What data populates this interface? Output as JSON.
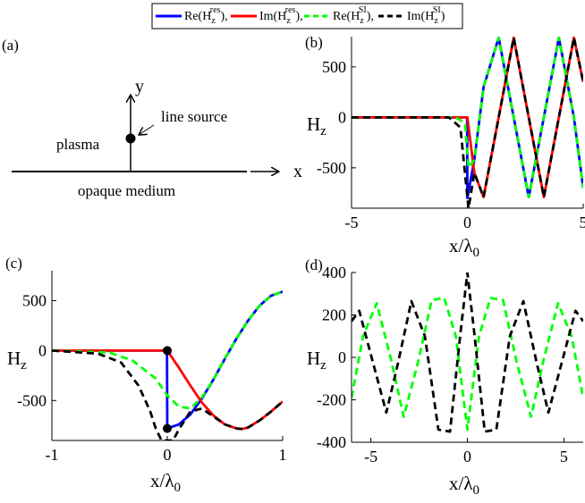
{
  "legend": {
    "entries": [
      {
        "name": "Re(H_z^res)",
        "base": "Re(H",
        "sub": "z",
        "sup": "res",
        "tail": "),",
        "color": "#0000ff",
        "dash": "solid"
      },
      {
        "name": "Im(H_z^res)",
        "base": "Im(H",
        "sub": "z",
        "sup": "res",
        "tail": "),",
        "color": "#ff0000",
        "dash": "solid"
      },
      {
        "name": "Re(H_z^SI)",
        "base": "Re(H",
        "sub": "z",
        "sup": "SI",
        "tail": "),",
        "color": "#00ff00",
        "dash": "dashed"
      },
      {
        "name": "Im(H_z^SI)",
        "base": "Im(H",
        "sub": "z",
        "sup": "SI",
        "tail": ")",
        "color": "#000000",
        "dash": "dashed"
      }
    ]
  },
  "panel_a": {
    "label": "(a)",
    "y_axis": "y",
    "x_axis": "x",
    "source_label": "line source",
    "upper_label": "plasma",
    "lower_label": "opaque medium"
  },
  "colors": {
    "blue": "#0000ff",
    "red": "#ff0000",
    "green": "#00ff00",
    "black": "#000000"
  },
  "chart_data": [
    {
      "panel": "(b)",
      "type": "line",
      "xlabel_main": "x/λ",
      "xlabel_sub": "0",
      "ylabel_main": "H",
      "ylabel_sub": "z",
      "xlim": [
        -5,
        5
      ],
      "ylim": [
        -900,
        800
      ],
      "xticks": [
        "-5",
        "0",
        "5"
      ],
      "xtick_values": [
        -5,
        0,
        5
      ],
      "yticks": [
        "500",
        "0",
        "-500"
      ],
      "ytick_values": [
        500,
        0,
        -500
      ],
      "series": [
        {
          "name": "Re(H_z^res)",
          "color": "#0000ff",
          "dash": "solid",
          "x": [
            -5,
            -0.01,
            0,
            0.3,
            0.7,
            1.35,
            2.0,
            2.65,
            3.3,
            3.95,
            4.6,
            5.0
          ],
          "y": [
            0,
            0,
            -800,
            -420,
            300,
            790,
            0,
            -790,
            0,
            790,
            0,
            -700
          ]
        },
        {
          "name": "Im(H_z^res)",
          "color": "#ff0000",
          "dash": "solid",
          "x": [
            -5,
            0,
            0.3,
            0.7,
            1.35,
            2.0,
            2.65,
            3.3,
            3.95,
            4.6,
            5.0
          ],
          "y": [
            0,
            0,
            -550,
            -790,
            0,
            790,
            0,
            -790,
            0,
            790,
            350
          ]
        },
        {
          "name": "Re(H_z^SI)",
          "color": "#00ff00",
          "dash": "dashed",
          "x": [
            -5,
            -0.5,
            -0.1,
            0.05,
            0.3,
            0.7,
            1.35,
            2.0,
            2.65,
            3.3,
            3.95,
            4.6,
            5.0
          ],
          "y": [
            0,
            0,
            -60,
            -500,
            -420,
            300,
            790,
            0,
            -790,
            0,
            790,
            0,
            -700
          ]
        },
        {
          "name": "Im(H_z^SI)",
          "color": "#000000",
          "dash": "dashed",
          "x": [
            -5,
            -0.8,
            -0.3,
            -0.1,
            0.05,
            0.3,
            0.7,
            1.35,
            2.0,
            2.65,
            3.3,
            3.95,
            4.6,
            5.0
          ],
          "y": [
            0,
            0,
            -100,
            -560,
            -900,
            -550,
            -790,
            0,
            790,
            0,
            -790,
            0,
            790,
            350
          ]
        }
      ]
    },
    {
      "panel": "(c)",
      "type": "line",
      "xlabel_main": "x/λ",
      "xlabel_sub": "0",
      "ylabel_main": "H",
      "ylabel_sub": "z",
      "xlim": [
        -1,
        1
      ],
      "ylim": [
        -900,
        800
      ],
      "xticks": [
        "-1",
        "0",
        "1"
      ],
      "xtick_values": [
        -1,
        0,
        1
      ],
      "yticks": [
        "500",
        "0",
        "-500"
      ],
      "ytick_values": [
        500,
        0,
        -500
      ],
      "markers": [
        {
          "x": 0,
          "y": 0
        },
        {
          "x": 0,
          "y": -780
        }
      ],
      "series": [
        {
          "name": "Re(H_z^res)",
          "color": "#0000ff",
          "dash": "solid",
          "x": [
            -1,
            -0.002,
            0,
            0.1,
            0.2,
            0.3,
            0.4,
            0.5,
            0.6,
            0.7,
            0.8,
            0.9,
            1.0
          ],
          "y": [
            0,
            0,
            -780,
            -740,
            -640,
            -480,
            -290,
            -80,
            120,
            300,
            450,
            550,
            590
          ]
        },
        {
          "name": "Im(H_z^res)",
          "color": "#ff0000",
          "dash": "solid",
          "x": [
            -1,
            0,
            0.1,
            0.2,
            0.3,
            0.4,
            0.5,
            0.6,
            0.65,
            0.7,
            0.8,
            0.9,
            1.0
          ],
          "y": [
            0,
            0,
            -170,
            -350,
            -520,
            -650,
            -740,
            -780,
            -785,
            -770,
            -700,
            -610,
            -510
          ]
        },
        {
          "name": "Re(H_z^SI)",
          "color": "#00ff00",
          "dash": "dashed",
          "x": [
            -1,
            -0.5,
            -0.3,
            -0.1,
            0,
            0.1,
            0.2,
            0.3,
            0.4,
            0.5,
            0.6,
            0.7,
            0.8,
            0.9,
            1.0
          ],
          "y": [
            0,
            -20,
            -100,
            -280,
            -450,
            -560,
            -580,
            -470,
            -290,
            -80,
            120,
            300,
            450,
            550,
            590
          ]
        },
        {
          "name": "Im(H_z^SI)",
          "color": "#000000",
          "dash": "dashed",
          "x": [
            -1,
            -0.6,
            -0.4,
            -0.25,
            -0.15,
            -0.1,
            -0.05,
            0.05,
            0.1,
            0.2,
            0.3,
            0.4,
            0.5,
            0.6,
            0.65,
            0.7,
            0.8,
            0.9,
            1.0
          ],
          "y": [
            0,
            -30,
            -120,
            -350,
            -600,
            -780,
            -900,
            -900,
            -790,
            -610,
            -580,
            -660,
            -740,
            -780,
            -785,
            -770,
            -700,
            -610,
            -510
          ]
        }
      ]
    },
    {
      "panel": "(d)",
      "type": "line",
      "xlabel_main": "x/λ",
      "xlabel_sub": "0",
      "ylabel_main": "H",
      "ylabel_sub": "z",
      "xlim": [
        -6,
        6
      ],
      "ylim": [
        -400,
        400
      ],
      "xticks": [
        "-5",
        "0",
        "5"
      ],
      "xtick_values": [
        -5,
        0,
        5
      ],
      "yticks": [
        "400",
        "200",
        "0",
        "-200",
        "-400"
      ],
      "ytick_values": [
        400,
        200,
        0,
        -200,
        -400
      ],
      "series": [
        {
          "name": "Re(H_z^SI)",
          "color": "#00ff00",
          "dash": "dashed",
          "x": [
            -6,
            -5.4,
            -4.7,
            -3.95,
            -3.3,
            -2.55,
            -1.85,
            -1.2,
            -0.6,
            0,
            0.6,
            1.2,
            1.85,
            2.55,
            3.3,
            3.95,
            4.7,
            5.4,
            6
          ],
          "y": [
            -190,
            100,
            255,
            -10,
            -280,
            -20,
            270,
            280,
            100,
            -340,
            100,
            280,
            270,
            -20,
            -280,
            -10,
            255,
            100,
            -190
          ]
        },
        {
          "name": "Im(H_z^SI)",
          "color": "#000000",
          "dash": "dashed",
          "x": [
            -6,
            -5.6,
            -4.9,
            -4.2,
            -3.6,
            -2.9,
            -2.2,
            -1.5,
            -0.9,
            -0.35,
            -0.15,
            0,
            0.15,
            0.35,
            0.9,
            1.5,
            2.2,
            2.9,
            3.6,
            4.2,
            4.9,
            5.6,
            6
          ],
          "y": [
            170,
            220,
            -20,
            -260,
            -30,
            265,
            100,
            -340,
            -350,
            120,
            280,
            400,
            280,
            120,
            -350,
            -340,
            100,
            265,
            -30,
            -260,
            -20,
            220,
            170
          ]
        }
      ]
    }
  ]
}
